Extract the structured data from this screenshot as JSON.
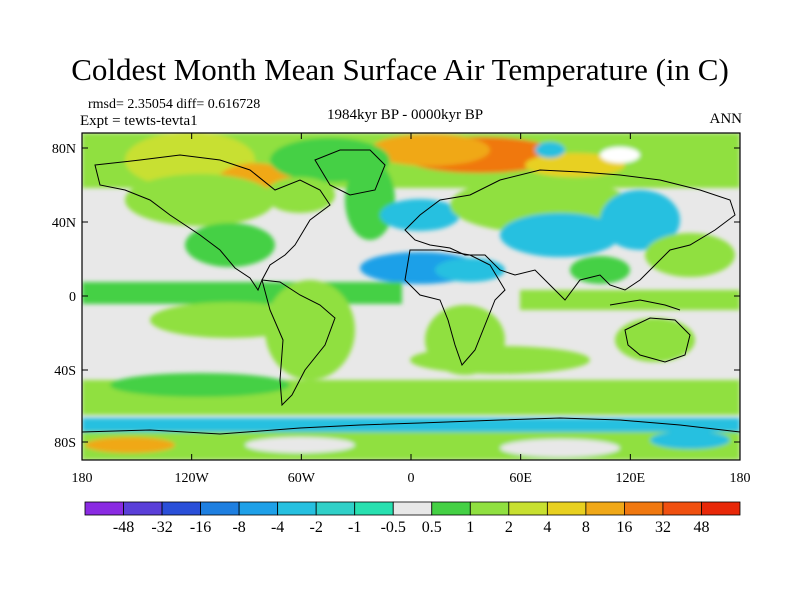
{
  "title": "Coldest Month Mean Surface Air Temperature (in C)",
  "stats": "rmsd= 2.35054 diff= 0.616728",
  "experiment": "Expt = tewts-tevta1",
  "period": "1984kyr BP - 0000kyr BP",
  "season": "ANN",
  "map": {
    "projection": "cylindrical equidistant",
    "lat_ticks": [
      "80N",
      "40N",
      "0",
      "40S",
      "80S"
    ],
    "lon_ticks": [
      "180",
      "120W",
      "60W",
      "0",
      "60E",
      "120E",
      "180"
    ],
    "neutral_color": "#e8e8e8",
    "coastline_color": "#000000"
  },
  "colorbar": {
    "labels": [
      "-48",
      "-32",
      "-16",
      "-8",
      "-4",
      "-2",
      "-1",
      "-0.5",
      "0.5",
      "1",
      "2",
      "4",
      "8",
      "16",
      "32",
      "48"
    ],
    "colors": [
      "#8a2be2",
      "#5a3fd8",
      "#2a4fd8",
      "#1e7fe0",
      "#1ea0e8",
      "#26c0e0",
      "#30d0c8",
      "#28e0b0",
      "#e8e8e8",
      "#44d044",
      "#90e040",
      "#c8e030",
      "#e8d020",
      "#f0a818",
      "#f07810",
      "#f05010",
      "#e82808"
    ]
  }
}
